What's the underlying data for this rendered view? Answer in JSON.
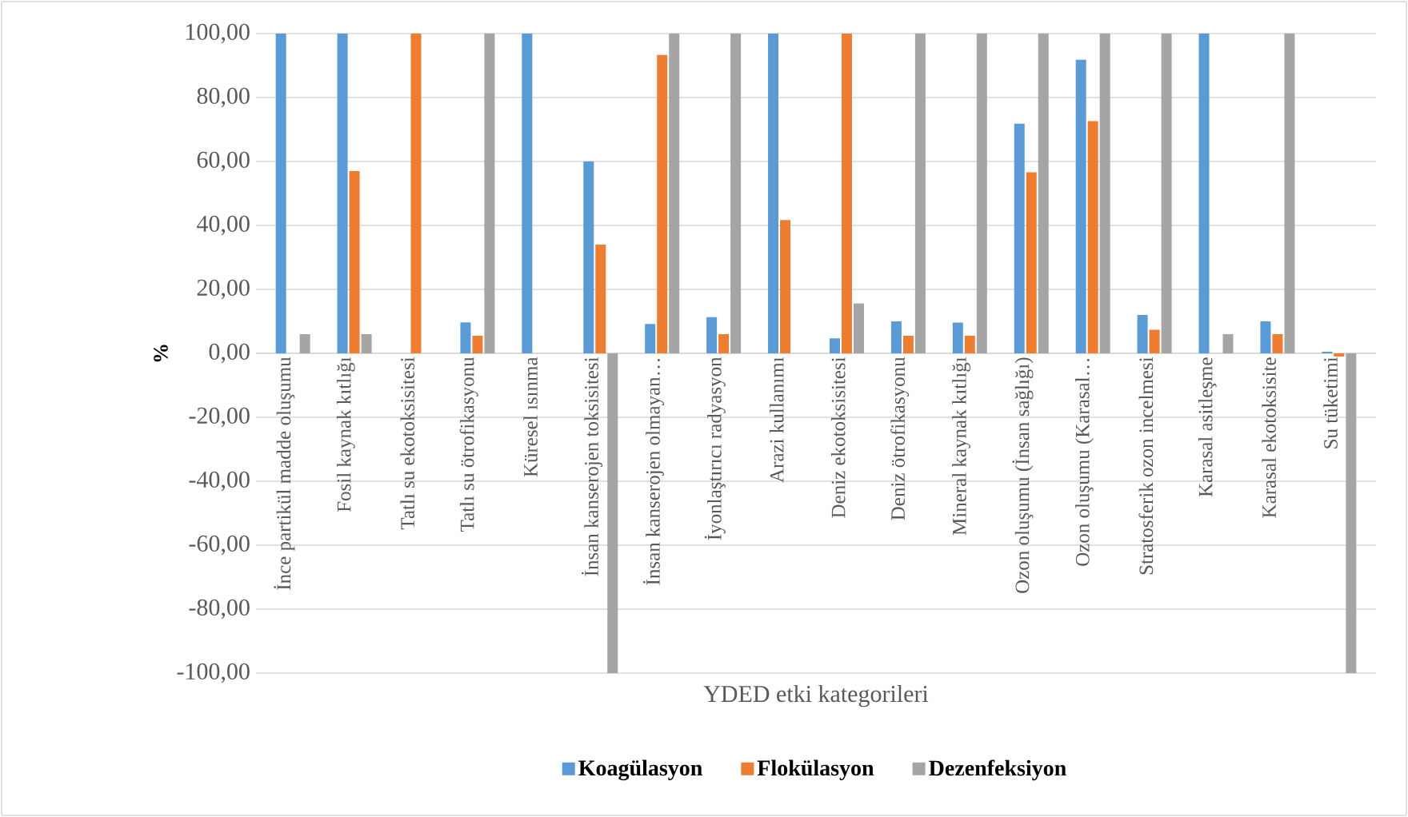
{
  "chart_data": {
    "type": "bar",
    "xlabel": "YDED etki kategorileri",
    "ylabel": "%",
    "categories": [
      "İnce partikül madde oluşumu",
      "Fosil kaynak kıtlığı",
      "Tatlı su ekotoksisitesi",
      "Tatlı su ötrofikasyonu",
      "Küresel ısınma",
      "İnsan kanserojen toksisitesi",
      "İnsan kanserojen olmayan…",
      "İyonlaştırıcı radyasyon",
      "Arazi kullanımı",
      "Deniz ekotoksisitesi",
      "Deniz ötrofikasyonu",
      "Mineral kaynak kıtlığı",
      "Ozon oluşumu (İnsan sağlığı)",
      "Ozon oluşumu (Karasal…",
      "Stratosferik ozon incelmesi",
      "Karasal asitleşme",
      "Karasal ekotoksisite",
      "Su tüketimi"
    ],
    "series": [
      {
        "name": "Koagülasyon",
        "color": "#5b9bd5",
        "values": [
          100,
          100,
          0,
          9.7,
          100,
          60,
          9.2,
          11.3,
          100,
          4.7,
          10,
          9.6,
          71.8,
          91.8,
          12,
          100,
          10,
          0.5
        ]
      },
      {
        "name": "Flokülasyon",
        "color": "#ed7d31",
        "values": [
          0,
          57,
          100,
          5.5,
          0,
          34,
          93.3,
          6,
          41.7,
          100,
          5.5,
          5.5,
          56.6,
          72.6,
          7.4,
          0,
          6,
          -1
        ]
      },
      {
        "name": "Dezenfeksiyon",
        "color": "#a5a5a5",
        "values": [
          6,
          6,
          0,
          100,
          0,
          -100,
          100,
          100,
          0,
          15.6,
          100,
          100,
          100,
          100,
          100,
          6,
          100,
          -100
        ]
      }
    ],
    "ylim": [
      -100,
      100
    ],
    "yticks": [
      {
        "value": -100,
        "label": "-100,00"
      },
      {
        "value": -80,
        "label": "-80,00"
      },
      {
        "value": -60,
        "label": "-60,00"
      },
      {
        "value": -40,
        "label": "-40,00"
      },
      {
        "value": -20,
        "label": "-20,00"
      },
      {
        "value": 0,
        "label": "0,00"
      },
      {
        "value": 20,
        "label": "20,00"
      },
      {
        "value": 40,
        "label": "40,00"
      },
      {
        "value": 60,
        "label": "60,00"
      },
      {
        "value": 80,
        "label": "80,00"
      },
      {
        "value": 100,
        "label": "100,00"
      }
    ],
    "grid": "y",
    "legend": "bottom"
  }
}
